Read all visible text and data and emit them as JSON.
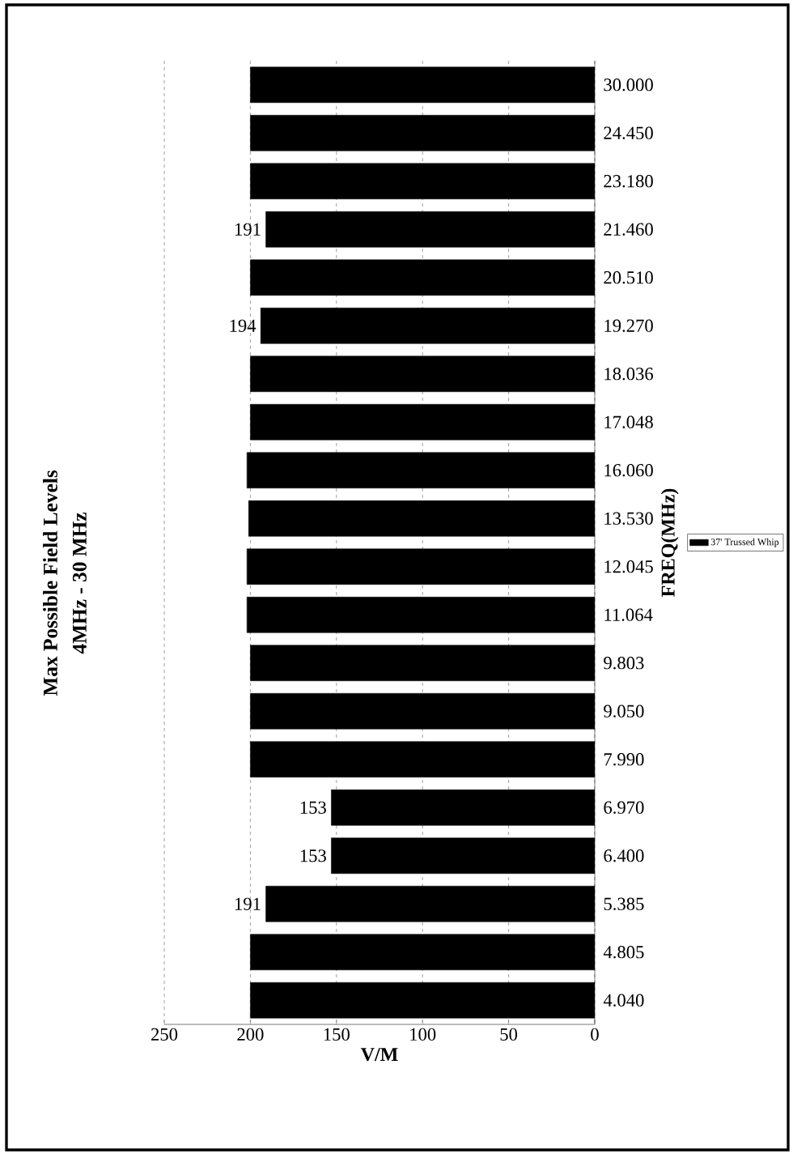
{
  "chart_data": {
    "type": "bar",
    "orientation": "horizontal",
    "title": "Max Possible Field Levels",
    "subtitle": "4MHz - 30 MHz",
    "xlabel": "V/M",
    "ylabel": "FREQ(MHz)",
    "categories": [
      "30.000",
      "24.450",
      "23.180",
      "21.460",
      "20.510",
      "19.270",
      "18.036",
      "17.048",
      "16.060",
      "13.530",
      "12.045",
      "11.064",
      "9.803",
      "9.050",
      "7.990",
      "6.970",
      "6.400",
      "5.385",
      "4.805",
      "4.040"
    ],
    "series": [
      {
        "name": "37' Trussed Whip",
        "color": "#000000",
        "values": [
          200,
          200,
          200,
          191,
          200,
          194,
          200,
          200,
          202,
          201,
          202,
          202,
          200,
          200,
          200,
          153,
          153,
          191,
          200,
          200
        ],
        "value_labels": [
          null,
          null,
          null,
          "191",
          null,
          "194",
          null,
          null,
          null,
          null,
          null,
          null,
          null,
          null,
          null,
          "153",
          "153",
          "191",
          null,
          null
        ]
      }
    ],
    "xlim": [
      250,
      0
    ],
    "xticks": [
      250,
      200,
      150,
      100,
      50,
      0
    ],
    "grid": "x",
    "legend": "right"
  }
}
